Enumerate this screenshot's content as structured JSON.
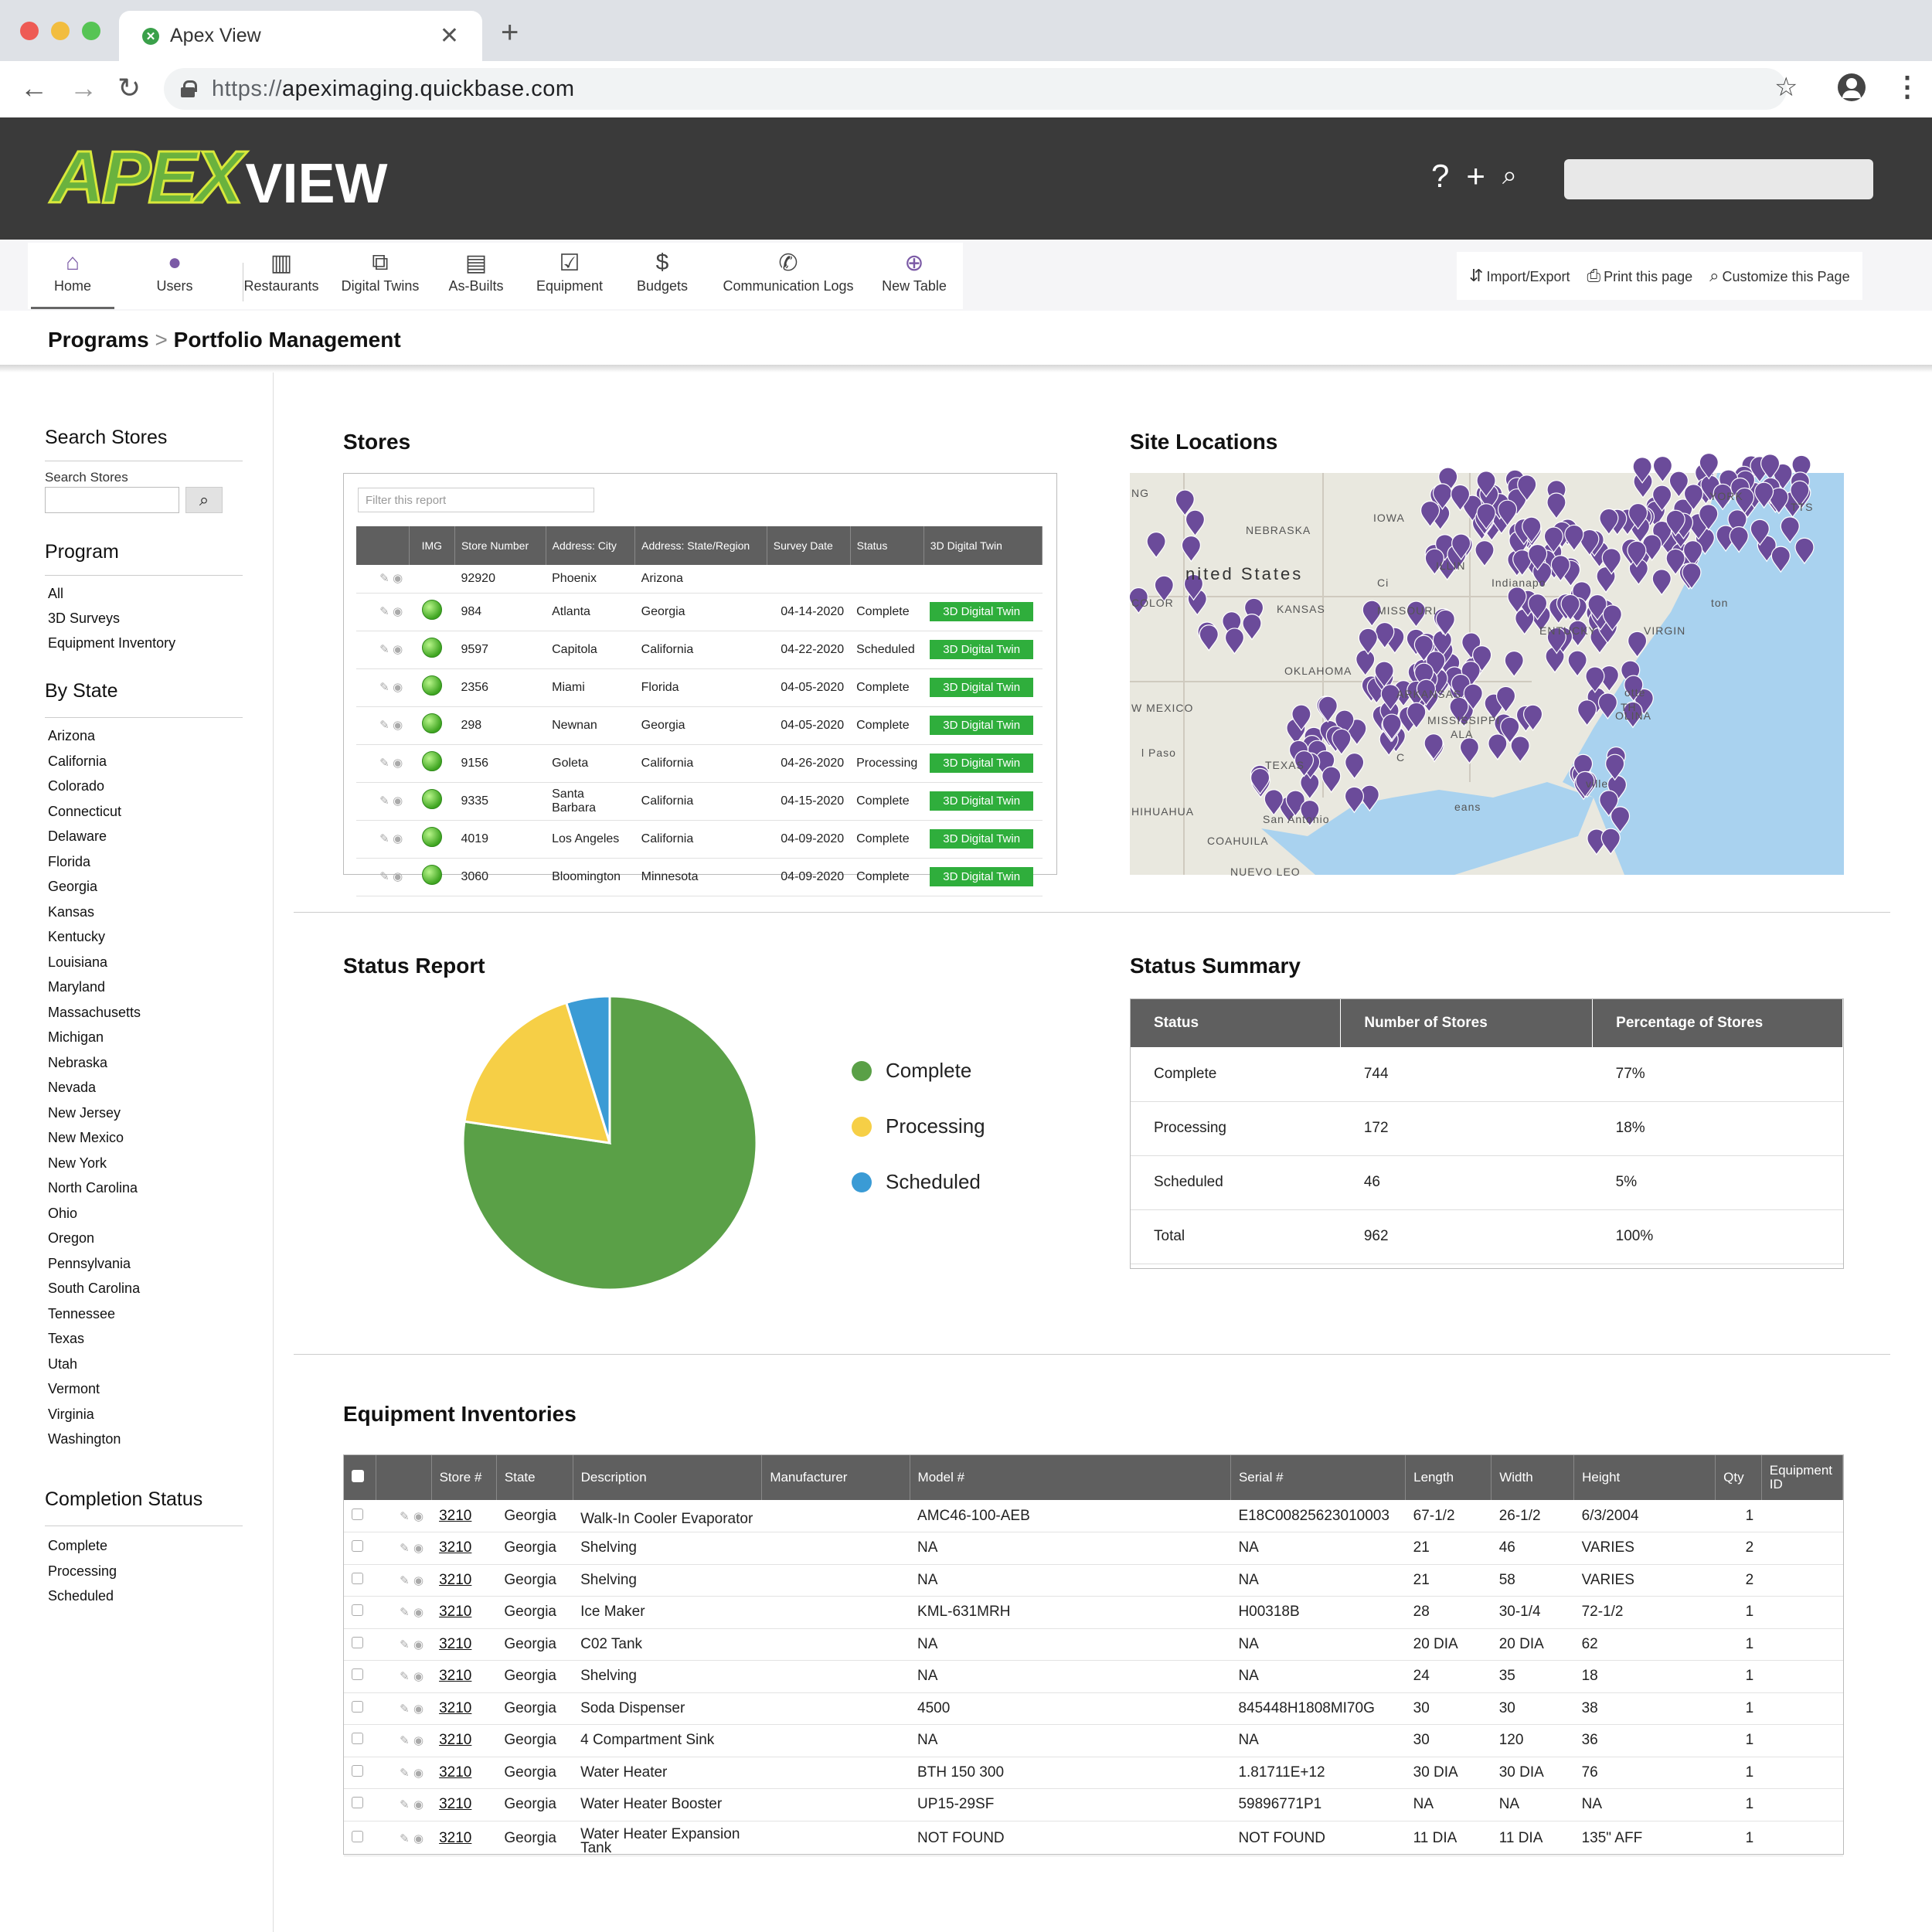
{
  "browser": {
    "tab_title": "Apex View",
    "url_scheme": "https://",
    "url_host": "apeximaging.quickbase.com"
  },
  "header": {
    "logo_apex": "APEX",
    "logo_view": "VIEW"
  },
  "toolbar": {
    "items": [
      {
        "label": "Home",
        "icon": "home-icon"
      },
      {
        "label": "Users",
        "icon": "user-icon"
      },
      {
        "label": "Restaurants",
        "icon": "storefront-icon"
      },
      {
        "label": "Digital Twins",
        "icon": "digital-twin-icon"
      },
      {
        "label": "As-Builts",
        "icon": "document-search-icon"
      },
      {
        "label": "Equipment",
        "icon": "checklist-icon"
      },
      {
        "label": "Budgets",
        "icon": "dollar-icon"
      },
      {
        "label": "Communication Logs",
        "icon": "phone-icon"
      },
      {
        "label": "New Table",
        "icon": "plus-circle-icon"
      }
    ],
    "actions": {
      "import_export": "Import/Export",
      "print": "Print this page",
      "customize": "Customize this Page"
    }
  },
  "breadcrumb": {
    "parent": "Programs",
    "separator": ">",
    "current": "Portfolio Management"
  },
  "sidebar": {
    "search_heading": "Search Stores",
    "search_label": "Search Stores",
    "program_heading": "Program",
    "programs": [
      "All",
      "3D Surveys",
      "Equipment Inventory"
    ],
    "state_heading": "By State",
    "states": [
      "Arizona",
      "California",
      "Colorado",
      "Connecticut",
      "Delaware",
      "Florida",
      "Georgia",
      "Kansas",
      "Kentucky",
      "Louisiana",
      "Maryland",
      "Massachusetts",
      "Michigan",
      "Nebraska",
      "Nevada",
      "New Jersey",
      "New Mexico",
      "New York",
      "North Carolina",
      "Ohio",
      "Oregon",
      "Pennsylvania",
      "South Carolina",
      "Tennessee",
      "Texas",
      "Utah",
      "Vermont",
      "Virginia",
      "Washington"
    ],
    "completion_heading": "Completion Status",
    "completion": [
      "Complete",
      "Processing",
      "Scheduled"
    ]
  },
  "stores": {
    "heading": "Stores",
    "filter_placeholder": "Filter this report",
    "columns": [
      "",
      "IMG",
      "Store Number",
      "Address: City",
      "Address: State/Region",
      "Survey Date",
      "Status",
      "3D Digital Twin"
    ],
    "rows": [
      {
        "store": "92920",
        "city": "Phoenix",
        "state": "Arizona",
        "date": "",
        "status": "",
        "twin": "",
        "img": false
      },
      {
        "store": "984",
        "city": "Atlanta",
        "state": "Georgia",
        "date": "04-14-2020",
        "status": "Complete",
        "twin": "3D Digital Twin",
        "img": true
      },
      {
        "store": "9597",
        "city": "Capitola",
        "state": "California",
        "date": "04-22-2020",
        "status": "Scheduled",
        "twin": "3D Digital Twin",
        "img": true
      },
      {
        "store": "2356",
        "city": "Miami",
        "state": "Florida",
        "date": "04-05-2020",
        "status": "Complete",
        "twin": "3D Digital Twin",
        "img": true
      },
      {
        "store": "298",
        "city": "Newnan",
        "state": "Georgia",
        "date": "04-05-2020",
        "status": "Complete",
        "twin": "3D Digital Twin",
        "img": true
      },
      {
        "store": "9156",
        "city": "Goleta",
        "state": "California",
        "date": "04-26-2020",
        "status": "Processing",
        "twin": "3D Digital Twin",
        "img": true
      },
      {
        "store": "9335",
        "city": "Santa Barbara",
        "state": "California",
        "date": "04-15-2020",
        "status": "Complete",
        "twin": "3D Digital Twin",
        "img": true
      },
      {
        "store": "4019",
        "city": "Los Angeles",
        "state": "California",
        "date": "04-09-2020",
        "status": "Complete",
        "twin": "3D Digital Twin",
        "img": true
      },
      {
        "store": "3060",
        "city": "Bloomington",
        "state": "Minnesota",
        "date": "04-09-2020",
        "status": "Complete",
        "twin": "3D Digital Twin",
        "img": true
      }
    ]
  },
  "site_locations": {
    "heading": "Site Locations",
    "country_label": "nited States",
    "labels": [
      "NEBRASKA",
      "IOWA",
      "KANSAS",
      "MISSOURI",
      "OKLAHOMA",
      "ARKANSAS",
      "MISSISSIPPI",
      "TEXAS",
      "COAHUILA",
      "HIHUAHUA",
      "W MEXICO",
      "COLOR",
      "Indianapo",
      "ENTUCKY",
      "VIRGIN",
      "San Antonio",
      "l Paso",
      "NUEVO LEO",
      "ILLIN",
      "YORK",
      "ALA",
      "Ci",
      "C",
      "ville",
      "eans",
      "otte",
      "TH",
      "OLINA",
      "NG",
      "ton",
      "TTS"
    ],
    "pin_color": "#6b4b9a"
  },
  "status_report": {
    "heading": "Status Report",
    "chart_data": {
      "type": "pie",
      "categories": [
        "Complete",
        "Processing",
        "Scheduled"
      ],
      "values": [
        744,
        172,
        46
      ],
      "colors": [
        "#5aa047",
        "#f6cf46",
        "#3a9bd5"
      ],
      "legend_position": "right"
    }
  },
  "status_summary": {
    "heading": "Status Summary",
    "columns": [
      "Status",
      "Number of Stores",
      "Percentage of Stores"
    ],
    "rows": [
      [
        "Complete",
        "744",
        "77%"
      ],
      [
        "Processing",
        "172",
        "18%"
      ],
      [
        "Scheduled",
        "46",
        "5%"
      ],
      [
        "Total",
        "962",
        "100%"
      ]
    ]
  },
  "equipment": {
    "heading": "Equipment Inventories",
    "columns": [
      "",
      "",
      "Store #",
      "State",
      "Description",
      "Manufacturer",
      "Model #",
      "Serial #",
      "Length",
      "Width",
      "Height",
      "Qty",
      "Equipment ID"
    ],
    "rows": [
      [
        "3210",
        "Georgia",
        "Walk-In Cooler Evaporator",
        "",
        "AMC46-100-AEB",
        "E18C00825623010003",
        "67-1/2",
        "26-1/2",
        "6/3/2004",
        "1",
        ""
      ],
      [
        "3210",
        "Georgia",
        "Shelving",
        "",
        "NA",
        "NA",
        "21",
        "46",
        "VARIES",
        "2",
        ""
      ],
      [
        "3210",
        "Georgia",
        "Shelving",
        "",
        "NA",
        "NA",
        "21",
        "58",
        "VARIES",
        "2",
        ""
      ],
      [
        "3210",
        "Georgia",
        "Ice Maker",
        "",
        "KML-631MRH",
        "H00318B",
        "28",
        "30-1/4",
        "72-1/2",
        "1",
        ""
      ],
      [
        "3210",
        "Georgia",
        "C02 Tank",
        "",
        "NA",
        "NA",
        "20 DIA",
        "20 DIA",
        "62",
        "1",
        ""
      ],
      [
        "3210",
        "Georgia",
        "Shelving",
        "",
        "NA",
        "NA",
        "24",
        "35",
        "18",
        "1",
        ""
      ],
      [
        "3210",
        "Georgia",
        "Soda Dispenser",
        "",
        "4500",
        "845448H1808MI70G",
        "30",
        "30",
        "38",
        "1",
        ""
      ],
      [
        "3210",
        "Georgia",
        "4 Compartment Sink",
        "",
        "NA",
        "NA",
        "30",
        "120",
        "36",
        "1",
        ""
      ],
      [
        "3210",
        "Georgia",
        "Water Heater",
        "",
        "BTH 150 300",
        "1.81711E+12",
        "30 DIA",
        "30 DIA",
        "76",
        "1",
        ""
      ],
      [
        "3210",
        "Georgia",
        "Water Heater Booster",
        "",
        "UP15-29SF",
        "59896771P1",
        "NA",
        "NA",
        "NA",
        "1",
        ""
      ],
      [
        "3210",
        "Georgia",
        "Water Heater Expansion Tank",
        "",
        "NOT FOUND",
        "NOT FOUND",
        "11 DIA",
        "11 DIA",
        "135\" AFF",
        "1",
        ""
      ]
    ]
  }
}
